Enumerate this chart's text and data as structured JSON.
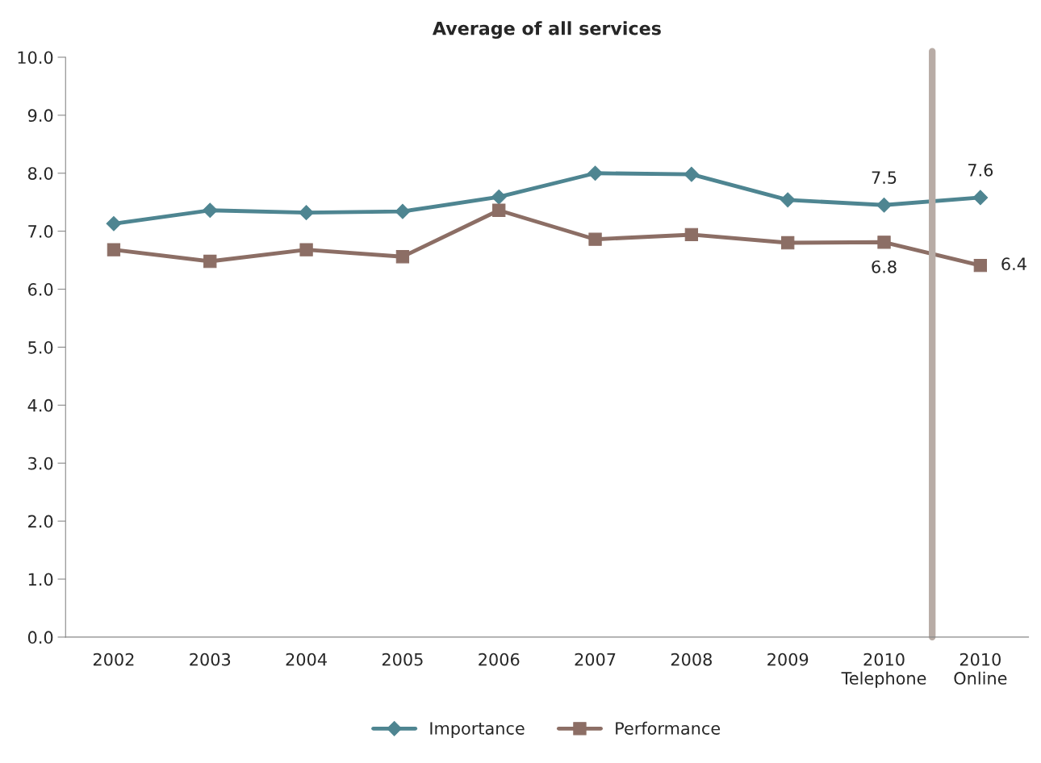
{
  "chart_data": {
    "type": "line",
    "title": "Average of all services",
    "categories": [
      "2002",
      "2003",
      "2004",
      "2005",
      "2006",
      "2007",
      "2008",
      "2009",
      "2010\nTelephone",
      "2010\nOnline"
    ],
    "series": [
      {
        "name": "Importance",
        "color": "#4e8591",
        "marker": "diamond",
        "values": [
          7.13,
          7.36,
          7.32,
          7.34,
          7.59,
          8.0,
          7.98,
          7.54,
          7.45,
          7.58
        ],
        "value_labels": [
          null,
          null,
          null,
          null,
          null,
          null,
          null,
          null,
          "7.5",
          "7.6"
        ]
      },
      {
        "name": "Performance",
        "color": "#8c6e65",
        "marker": "square",
        "values": [
          6.68,
          6.48,
          6.68,
          6.56,
          7.36,
          6.86,
          6.94,
          6.8,
          6.81,
          6.41
        ],
        "value_labels": [
          null,
          null,
          null,
          null,
          null,
          null,
          null,
          null,
          "6.8",
          "6.4"
        ]
      }
    ],
    "ylim": [
      0,
      10
    ],
    "yticks": [
      {
        "value": 0,
        "label": "0.0"
      },
      {
        "value": 1,
        "label": "1.0"
      },
      {
        "value": 2,
        "label": "2.0"
      },
      {
        "value": 3,
        "label": "3.0"
      },
      {
        "value": 4,
        "label": "4.0"
      },
      {
        "value": 5,
        "label": "5.0"
      },
      {
        "value": 6,
        "label": "6.0"
      },
      {
        "value": 7,
        "label": "7.0"
      },
      {
        "value": 8,
        "label": "8.0"
      },
      {
        "value": 9,
        "label": "9.0"
      },
      {
        "value": 10,
        "label": "10.0"
      }
    ],
    "grid": false,
    "legend": "bottom"
  }
}
